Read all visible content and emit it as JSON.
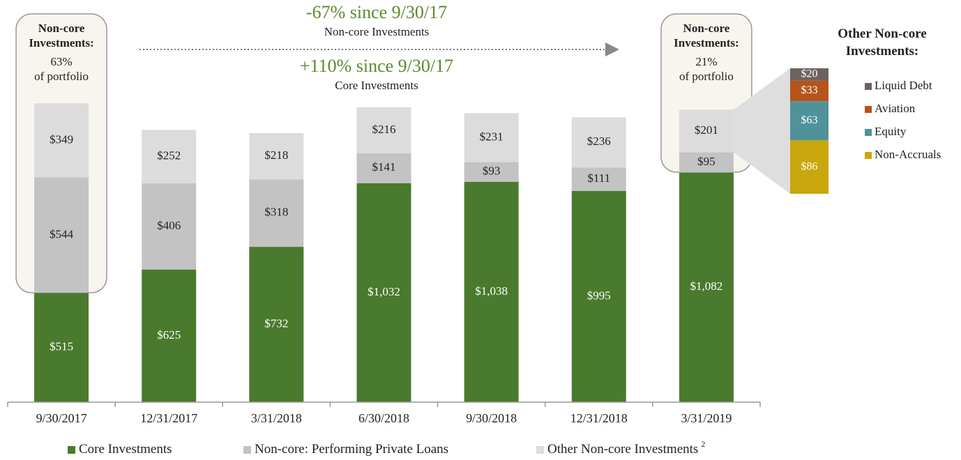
{
  "chart_data": {
    "type": "bar",
    "stacked": true,
    "categories": [
      "9/30/2017",
      "12/31/2017",
      "3/31/2018",
      "6/30/2018",
      "9/30/2018",
      "12/31/2018",
      "3/31/2019"
    ],
    "series": [
      {
        "name": "Core Investments",
        "color": "#4a7a2e",
        "label_color": "#ffffff",
        "values": [
          515,
          625,
          732,
          1032,
          1038,
          995,
          1082
        ],
        "value_labels": [
          "$515",
          "$625",
          "$732",
          "$1,032",
          "$1,038",
          "$995",
          "$1,082"
        ]
      },
      {
        "name": "Non-core: Performing Private Loans",
        "color": "#c3c3c3",
        "label_color": "#222222",
        "values": [
          544,
          406,
          318,
          141,
          93,
          111,
          95
        ],
        "value_labels": [
          "$544",
          "$406",
          "$318",
          "$141",
          "$93",
          "$111",
          "$95"
        ]
      },
      {
        "name": "Other Non-core Investments",
        "footnote": "2",
        "color": "#dcdcdc",
        "label_color": "#222222",
        "values": [
          349,
          252,
          218,
          216,
          231,
          236,
          201
        ],
        "value_labels": [
          "$349",
          "$252",
          "$218",
          "$216",
          "$231",
          "$236",
          "$201"
        ]
      }
    ],
    "annotations": [
      {
        "text": "-67% since 9/30/17",
        "subtext": "Non-core Investments"
      },
      {
        "text": "+110% since 9/30/17",
        "subtext": "Core Investments"
      }
    ],
    "callouts": [
      {
        "title": "Non-core Investments:",
        "share": "63%",
        "text": "of portfolio"
      },
      {
        "title": "Non-core Investments:",
        "share": "21%",
        "text": "of portfolio"
      }
    ],
    "breakdown": {
      "title": "Other Non-core Investments:",
      "categories": [
        "Liquid Debt",
        "Aviation",
        "Equity",
        "Non-Accruals"
      ],
      "values": [
        20,
        33,
        63,
        86
      ],
      "value_labels": [
        "$20",
        "$33",
        "$63",
        "$86"
      ],
      "colors": [
        "#6e625e",
        "#b5541b",
        "#4f929a",
        "#c9a70c"
      ]
    }
  }
}
